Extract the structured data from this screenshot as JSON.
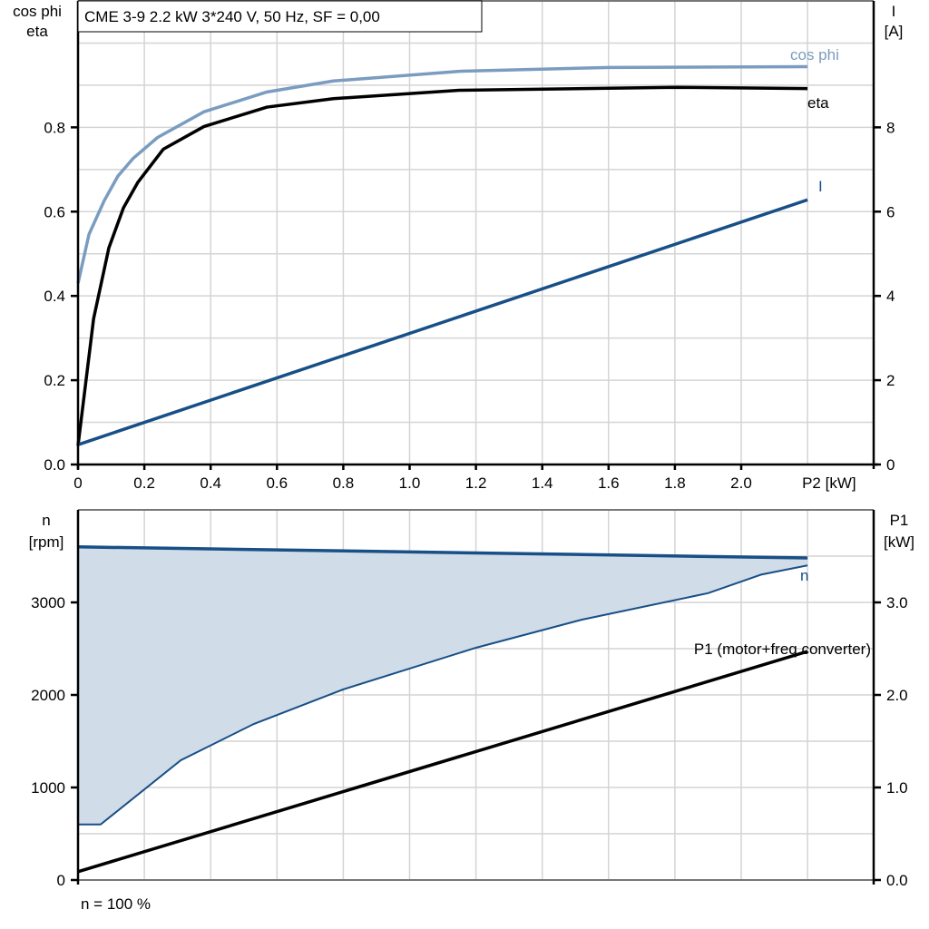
{
  "title": "CME 3-9   2.2 kW   3*240 V, 50 Hz, SF = 0,00",
  "footer_note": "n = 100 %",
  "colors": {
    "cos_phi": "#7a9cc0",
    "eta": "#000000",
    "I": "#174f86",
    "n": "#174f86",
    "n_fill": "#d0dce8",
    "P1": "#000000",
    "grid": "#d4d4d4"
  },
  "chart_data": [
    {
      "type": "line",
      "xlabel": "P2 [kW]",
      "x_ticks": [
        "0",
        "0.2",
        "0.4",
        "0.6",
        "0.8",
        "1.0",
        "1.2",
        "1.4",
        "1.6",
        "1.8",
        "2.0"
      ],
      "xlim": [
        0,
        2.4
      ],
      "ylabel_left": [
        "cos phi",
        "eta"
      ],
      "ylim_left": [
        0,
        1.1
      ],
      "y_ticks_left": [
        "0.0",
        "0.2",
        "0.4",
        "0.6",
        "0.8"
      ],
      "ylabel_right": [
        "I",
        "[A]"
      ],
      "ylim_right": [
        0,
        11
      ],
      "y_ticks_right": [
        "0",
        "2",
        "4",
        "6",
        "8"
      ],
      "grid": true,
      "series": [
        {
          "name": "cos phi",
          "axis": "left",
          "x": [
            0,
            0.033,
            0.079,
            0.12,
            0.167,
            0.24,
            0.38,
            0.57,
            0.77,
            1.15,
            1.6,
            2.2
          ],
          "y": [
            0.43,
            0.546,
            0.626,
            0.684,
            0.727,
            0.776,
            0.837,
            0.884,
            0.91,
            0.933,
            0.942,
            0.944
          ]
        },
        {
          "name": "eta",
          "axis": "left",
          "x": [
            0,
            0.047,
            0.093,
            0.137,
            0.18,
            0.257,
            0.38,
            0.57,
            0.77,
            1.15,
            1.8,
            2.2
          ],
          "y": [
            0.045,
            0.346,
            0.514,
            0.609,
            0.669,
            0.748,
            0.802,
            0.848,
            0.868,
            0.888,
            0.895,
            0.892
          ]
        },
        {
          "name": "I",
          "axis": "right",
          "x": [
            0,
            2.2
          ],
          "y": [
            0.47,
            6.28
          ]
        }
      ]
    },
    {
      "type": "area",
      "xlim": [
        0,
        2.4
      ],
      "ylabel_left": [
        "n",
        "[rpm]"
      ],
      "ylim_left": [
        0,
        4000
      ],
      "y_ticks_left": [
        "0",
        "1000",
        "2000",
        "3000"
      ],
      "ylabel_right": [
        "P1",
        "[kW]"
      ],
      "ylim_right": [
        0,
        4
      ],
      "y_ticks_right": [
        "0.0",
        "1.0",
        "2.0",
        "3.0"
      ],
      "grid": true,
      "series": [
        {
          "name": "n",
          "axis": "left",
          "role": "max",
          "x": [
            0,
            2.2
          ],
          "y": [
            3600,
            3480
          ]
        },
        {
          "name": "n",
          "axis": "left",
          "role": "min",
          "x": [
            0,
            0.068,
            0.31,
            0.53,
            0.8,
            1.2,
            1.52,
            1.9,
            2.06,
            2.2
          ],
          "y": [
            600,
            600,
            1294,
            1686,
            2060,
            2510,
            2814,
            3100,
            3300,
            3400
          ]
        },
        {
          "name": "P1 (motor+freq.converter)",
          "axis": "right",
          "x": [
            0,
            2.2
          ],
          "y": [
            0.09,
            2.47
          ]
        }
      ]
    }
  ]
}
